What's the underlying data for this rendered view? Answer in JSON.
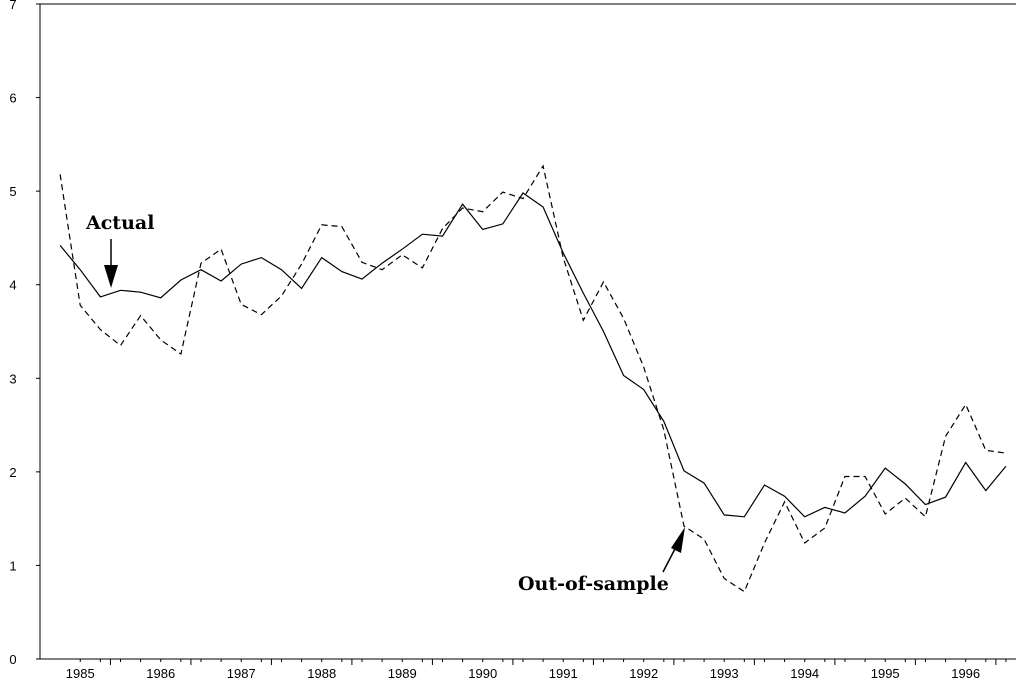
{
  "chart_data": {
    "type": "line",
    "title": "",
    "xlabel": "",
    "ylabel": "",
    "ylim": [
      0,
      7
    ],
    "yticks": [
      "0",
      "1",
      "2",
      "3",
      "4",
      "5",
      "6",
      "7"
    ],
    "xticks": [
      "1985",
      "1986",
      "1987",
      "1988",
      "1989",
      "1990",
      "1991",
      "1992",
      "1993",
      "1994",
      "1995",
      "1996"
    ],
    "x_start": 1984.875,
    "x_step": 0.25,
    "grid": false,
    "series": [
      {
        "name": "Actual",
        "style": "solid",
        "values": [
          4.42,
          4.16,
          3.87,
          3.94,
          3.92,
          3.86,
          4.05,
          4.16,
          4.04,
          4.22,
          4.29,
          4.16,
          3.96,
          4.29,
          4.14,
          4.06,
          4.23,
          4.38,
          4.54,
          4.52,
          4.86,
          4.59,
          4.65,
          4.98,
          4.83,
          4.34,
          3.91,
          3.5,
          3.03,
          2.88,
          2.54,
          2.01,
          1.88,
          1.54,
          1.52,
          1.86,
          1.74,
          1.52,
          1.62,
          1.56,
          1.74,
          2.04,
          1.87,
          1.65,
          1.73,
          2.1,
          1.8,
          2.06
        ]
      },
      {
        "name": "Out-of-sample",
        "style": "dashed",
        "values": [
          5.18,
          3.78,
          3.52,
          3.35,
          3.67,
          3.41,
          3.26,
          4.23,
          4.38,
          3.79,
          3.68,
          3.88,
          4.22,
          4.64,
          4.62,
          4.24,
          4.16,
          4.32,
          4.18,
          4.6,
          4.82,
          4.78,
          4.99,
          4.92,
          5.27,
          4.29,
          3.62,
          4.03,
          3.64,
          3.12,
          2.45,
          1.42,
          1.28,
          0.86,
          0.72,
          1.24,
          1.68,
          1.24,
          1.4,
          1.95,
          1.95,
          1.55,
          1.72,
          1.52,
          2.38,
          2.72,
          2.23,
          2.2
        ]
      }
    ],
    "annotations": [
      {
        "text": "Actual",
        "points_to_series": "Actual"
      },
      {
        "text": "Out-of-sample",
        "points_to_series": "Out-of-sample"
      }
    ]
  }
}
